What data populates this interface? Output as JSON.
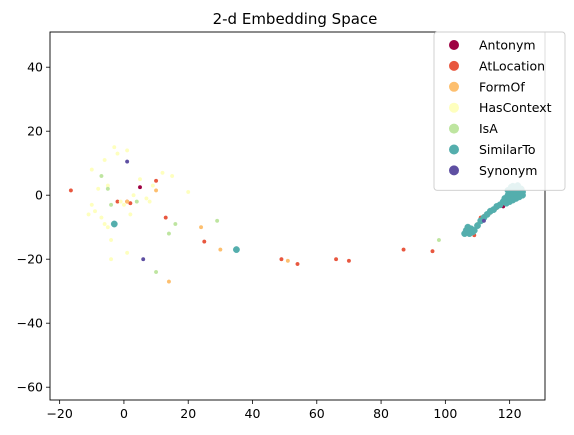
{
  "chart_data": {
    "type": "scatter",
    "title": "2-d Embedding Space",
    "xlabel": "",
    "ylabel": "",
    "xlim": [
      -23,
      131
    ],
    "ylim": [
      -64,
      51
    ],
    "xticks": [
      -20,
      0,
      20,
      40,
      60,
      80,
      100,
      120
    ],
    "yticks": [
      -60,
      -40,
      -20,
      0,
      20,
      40
    ],
    "grid": false,
    "legend_position": "top-right",
    "series": [
      {
        "name": "Antonym",
        "color": "#9e0142",
        "points": [
          [
            5,
            2.5
          ],
          [
            119,
            -2
          ],
          [
            121,
            0
          ],
          [
            113,
            -6
          ],
          [
            118,
            -3.5
          ]
        ]
      },
      {
        "name": "AtLocation",
        "color": "#e8573f",
        "points": [
          [
            -16.5,
            1.5
          ],
          [
            -2,
            -2
          ],
          [
            1,
            -2
          ],
          [
            2,
            -2.5
          ],
          [
            10,
            4.5
          ],
          [
            13,
            -7
          ],
          [
            25,
            -14.5
          ],
          [
            49,
            -20
          ],
          [
            54,
            -21.5
          ],
          [
            66,
            -20
          ],
          [
            70,
            -20.5
          ],
          [
            87,
            -17
          ],
          [
            96,
            -17.5
          ],
          [
            107,
            -12
          ],
          [
            108,
            -11
          ],
          [
            109,
            -12.5
          ],
          [
            111,
            -7
          ],
          [
            112,
            -6.5
          ],
          [
            113,
            -5.8
          ],
          [
            114,
            -5.5
          ],
          [
            116,
            -4
          ],
          [
            117,
            -3
          ],
          [
            118,
            -2.5
          ],
          [
            119,
            -1.5
          ],
          [
            120,
            -1
          ],
          [
            121,
            0.5
          ],
          [
            122,
            1.5
          ],
          [
            123,
            1
          ],
          [
            124,
            2
          ]
        ]
      },
      {
        "name": "FormOf",
        "color": "#fdbf6f",
        "points": [
          [
            1,
            -2
          ],
          [
            10,
            1.5
          ],
          [
            14,
            -27
          ],
          [
            24,
            -10
          ],
          [
            30,
            -17
          ],
          [
            51,
            -20.5
          ]
        ]
      },
      {
        "name": "HasContext",
        "color": "#feffbe",
        "points": [
          [
            -11,
            -6
          ],
          [
            -10,
            -3
          ],
          [
            -9,
            -5
          ],
          [
            -8,
            2
          ],
          [
            -7,
            -7
          ],
          [
            -6,
            -9
          ],
          [
            -5,
            -10
          ],
          [
            -4,
            -20
          ],
          [
            -3,
            15
          ],
          [
            -2,
            13
          ],
          [
            -1,
            -2
          ],
          [
            0,
            -3
          ],
          [
            1,
            14
          ],
          [
            2,
            -6
          ],
          [
            3,
            0
          ],
          [
            5,
            5
          ],
          [
            7,
            -1
          ],
          [
            8,
            -2
          ],
          [
            9,
            3
          ],
          [
            12,
            7
          ],
          [
            15,
            6
          ],
          [
            20,
            1
          ],
          [
            -6,
            11
          ],
          [
            -10,
            8
          ],
          [
            -5,
            3
          ],
          [
            -4,
            -14
          ],
          [
            1,
            -18
          ]
        ]
      },
      {
        "name": "IsA",
        "color": "#bee5a0",
        "points": [
          [
            -7,
            6
          ],
          [
            -5,
            2
          ],
          [
            -4,
            -3
          ],
          [
            4,
            -2
          ],
          [
            10,
            -24
          ],
          [
            14,
            -12
          ],
          [
            16,
            -9
          ],
          [
            29,
            -8
          ],
          [
            98,
            -14
          ],
          [
            107,
            -11
          ],
          [
            110,
            -9
          ]
        ]
      },
      {
        "name": "SimilarTo",
        "color": "#54aead",
        "points": [
          [
            -3,
            -9
          ],
          [
            35,
            -17
          ],
          [
            106,
            -12
          ],
          [
            106.5,
            -11
          ],
          [
            107,
            -10
          ],
          [
            107.5,
            -12
          ],
          [
            108,
            -10.5
          ],
          [
            108.5,
            -11.5
          ],
          [
            109,
            -11
          ],
          [
            110,
            -9.5
          ],
          [
            111,
            -8
          ],
          [
            112,
            -7
          ],
          [
            113,
            -6
          ],
          [
            114,
            -5
          ],
          [
            115,
            -4.5
          ],
          [
            116,
            -3.5
          ],
          [
            117,
            -3
          ],
          [
            118,
            -2
          ],
          [
            118.5,
            -1
          ],
          [
            119,
            -1.5
          ],
          [
            119.5,
            0
          ],
          [
            120,
            0.5
          ],
          [
            120,
            -1
          ],
          [
            120.5,
            1.5
          ],
          [
            121,
            2
          ],
          [
            121,
            0
          ],
          [
            121.5,
            -0.5
          ],
          [
            122,
            1
          ],
          [
            122,
            2.5
          ],
          [
            122.5,
            0
          ],
          [
            123,
            1.5
          ],
          [
            123,
            0.5
          ],
          [
            123.5,
            2
          ],
          [
            124,
            1
          ],
          [
            121,
            -1.5
          ],
          [
            120,
            -2
          ],
          [
            119,
            -2.5
          ],
          [
            122,
            -1
          ],
          [
            123,
            -0.5
          ],
          [
            124,
            0
          ],
          [
            121,
            2.8
          ],
          [
            122.5,
            3
          ],
          [
            120.5,
            2.5
          ],
          [
            119.5,
            1.5
          ]
        ]
      },
      {
        "name": "Synonym",
        "color": "#5e4fa2",
        "points": [
          [
            1,
            10.5
          ],
          [
            6,
            -20
          ],
          [
            112,
            -8
          ]
        ]
      }
    ]
  }
}
